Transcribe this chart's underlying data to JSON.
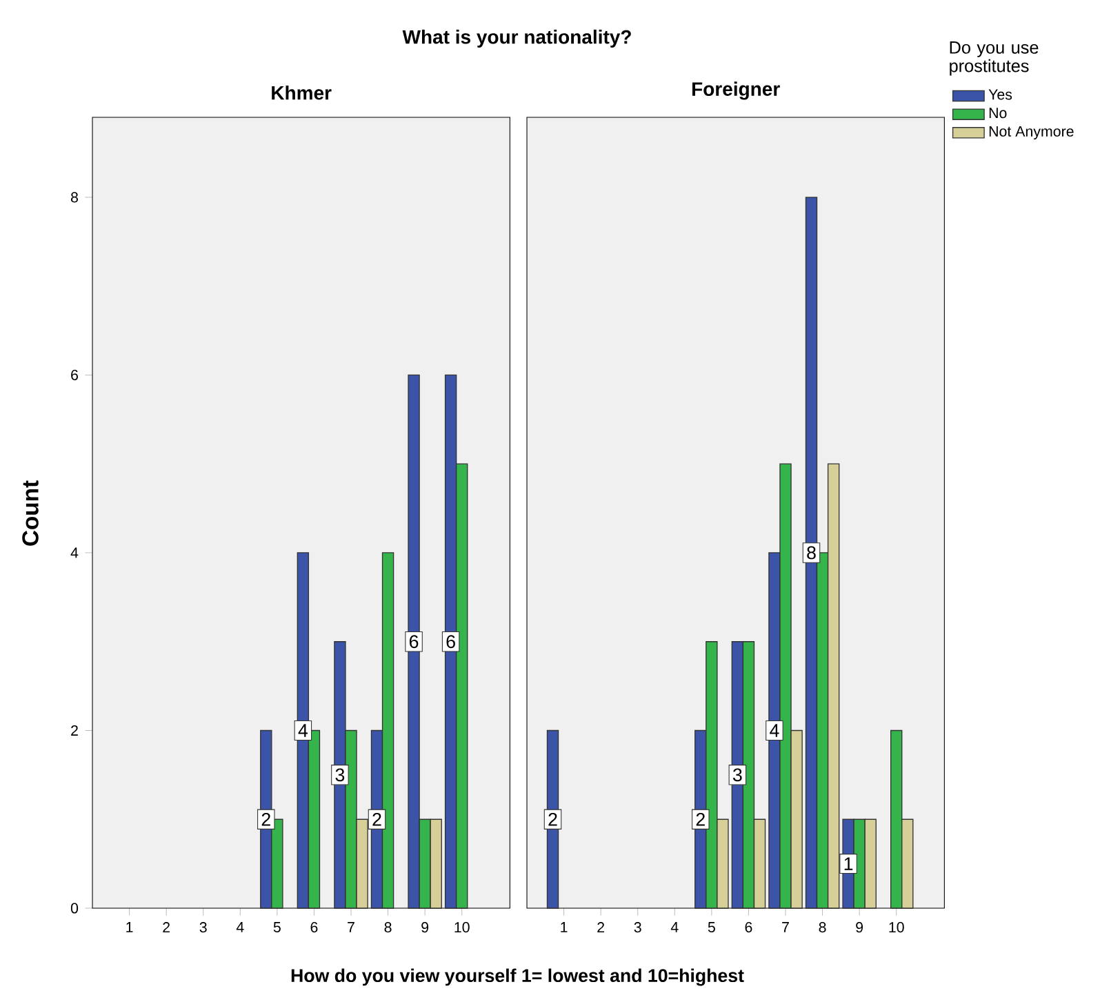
{
  "chart_data": [
    {
      "type": "bar",
      "title": "Khmer",
      "annotations": [
        "What is your nationality?"
      ],
      "xlabel": "How do you view yourself 1= lowest and 10=highest",
      "ylabel": "Count",
      "categories": [
        "1",
        "2",
        "3",
        "4",
        "5",
        "6",
        "7",
        "8",
        "9",
        "10"
      ],
      "ylim": [
        0,
        8.9
      ],
      "yticks": [
        0,
        2,
        4,
        6,
        8
      ],
      "series": [
        {
          "color": "#3b54a8",
          "values": [
            null,
            null,
            null,
            null,
            2,
            4,
            3,
            2,
            6,
            6
          ],
          "value_labels": [
            null,
            null,
            null,
            null,
            "2",
            "4",
            "3",
            "2",
            "6",
            "6"
          ]
        },
        {
          "color": "#34b44a",
          "values": [
            null,
            null,
            null,
            null,
            1,
            2,
            2,
            4,
            1,
            5
          ]
        },
        {
          "color": "#d6cf97",
          "values": [
            null,
            null,
            null,
            null,
            null,
            null,
            1,
            null,
            1,
            null
          ]
        }
      ]
    },
    {
      "type": "bar",
      "title": "Foreigner",
      "legend_title": "Do you use prostitutes",
      "legend": "top right",
      "tick_labels": "x",
      "categories": [
        "1",
        "2",
        "3",
        "4",
        "5",
        "6",
        "7",
        "8",
        "9",
        "10"
      ],
      "ylim": [
        0,
        8.9
      ],
      "series": [
        {
          "name": "Yes",
          "color": "#3b54a8",
          "values": [
            2,
            null,
            null,
            null,
            2,
            3,
            4,
            8,
            1,
            null
          ],
          "value_labels": [
            "2",
            null,
            null,
            null,
            "2",
            "3",
            "4",
            "8",
            "1",
            null
          ]
        },
        {
          "name": "No",
          "color": "#34b44a",
          "values": [
            null,
            null,
            null,
            null,
            3,
            3,
            5,
            4,
            1,
            2
          ]
        },
        {
          "name": "Not Anymore",
          "color": "#d6cf97",
          "values": [
            null,
            null,
            null,
            null,
            1,
            1,
            2,
            5,
            1,
            1
          ]
        }
      ]
    }
  ]
}
